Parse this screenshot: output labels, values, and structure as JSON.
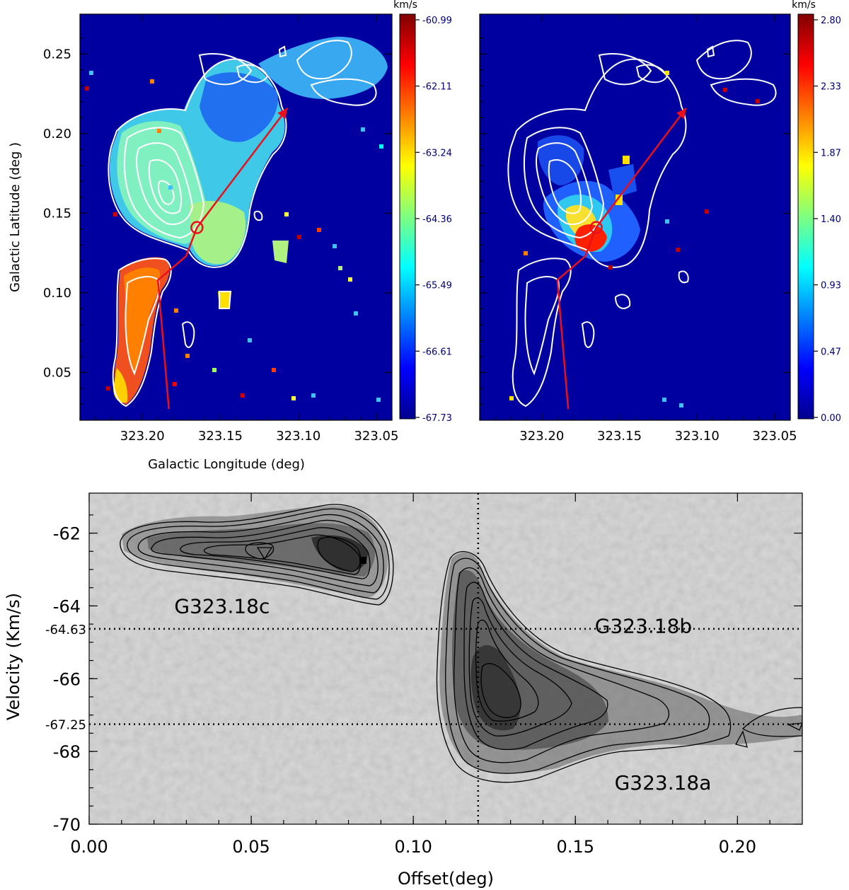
{
  "chart_data": [
    {
      "type": "heatmap",
      "panel": "top-left",
      "xlabel": "Galactic Longitude (deg)",
      "ylabel": "Galactic Latitude (deg )",
      "x_ticks": [
        "323.20",
        "323.15",
        "323.10",
        "323.05"
      ],
      "x_tick_values": [
        323.2,
        323.15,
        323.1,
        323.05
      ],
      "y_ticks": [
        "0.25",
        "0.20",
        "0.15",
        "0.10",
        "0.05"
      ],
      "y_tick_values": [
        0.25,
        0.2,
        0.15,
        0.1,
        0.05
      ],
      "xlim": [
        323.24,
        323.04
      ],
      "ylim": [
        0.02,
        0.275
      ],
      "colorbar": {
        "unit": "km/s",
        "ticks": [
          "-60.99",
          "-62.11",
          "-63.24",
          "-64.36",
          "-65.49",
          "-66.61",
          "-67.73"
        ],
        "range": [
          -67.73,
          -60.99
        ]
      },
      "path_points": [
        [
          323.183,
          0.027
        ],
        [
          323.19,
          0.108
        ],
        [
          323.172,
          0.123
        ],
        [
          323.165,
          0.141
        ],
        [
          323.107,
          0.216
        ]
      ],
      "marker": [
        323.165,
        0.141
      ]
    },
    {
      "type": "heatmap",
      "panel": "top-right",
      "x_ticks": [
        "323.20",
        "323.15",
        "323.10",
        "323.05"
      ],
      "x_tick_values": [
        323.2,
        323.15,
        323.1,
        323.05
      ],
      "xlim": [
        323.24,
        323.04
      ],
      "ylim": [
        0.02,
        0.275
      ],
      "colorbar": {
        "unit": "km/s",
        "ticks": [
          "2.80",
          "2.33",
          "1.87",
          "1.40",
          "0.93",
          "0.47",
          "0.00"
        ],
        "range": [
          0.0,
          2.8
        ]
      },
      "path_points": [
        [
          323.183,
          0.027
        ],
        [
          323.19,
          0.108
        ],
        [
          323.172,
          0.123
        ],
        [
          323.165,
          0.141
        ],
        [
          323.107,
          0.216
        ]
      ],
      "marker": [
        323.165,
        0.141
      ]
    },
    {
      "type": "heatmap",
      "panel": "bottom",
      "xlabel": "Offset(deg)",
      "ylabel": "Velocity (Km/s)",
      "x_ticks": [
        "0.00",
        "0.05",
        "0.10",
        "0.15",
        "0.20"
      ],
      "x_tick_values": [
        0.0,
        0.05,
        0.1,
        0.15,
        0.2
      ],
      "y_ticks": [
        "-62",
        "-64",
        "-66",
        "-68",
        "-70"
      ],
      "y_tick_values": [
        -62,
        -64,
        -66,
        -68,
        -70
      ],
      "xlim": [
        0.0,
        0.22
      ],
      "ylim": [
        -70.0,
        -60.9
      ],
      "reference_lines": {
        "velocities": [
          -64.63,
          -67.25
        ],
        "velocity_labels": [
          "-64.63",
          "-67.25"
        ],
        "offset": 0.12
      },
      "annotations": [
        {
          "text": "G323.18c",
          "offset": 0.041,
          "velocity": -64.0
        },
        {
          "text": "G323.18b",
          "offset": 0.171,
          "velocity": -64.55
        },
        {
          "text": "G323.18a",
          "offset": 0.177,
          "velocity": -68.85
        }
      ],
      "components": [
        {
          "name": "G323.18c",
          "offset_center": 0.05,
          "velocity_center": -62.6
        },
        {
          "name": "G323.18b",
          "offset_center": 0.12,
          "velocity_center": -64.6
        },
        {
          "name": "G323.18a",
          "offset_center": 0.13,
          "velocity_center": -67.0
        }
      ]
    }
  ],
  "colors": {
    "map_background": "#0000a0",
    "path": "#e8101a",
    "contour_map": "#ffffff",
    "contour_pv": "#000000"
  }
}
